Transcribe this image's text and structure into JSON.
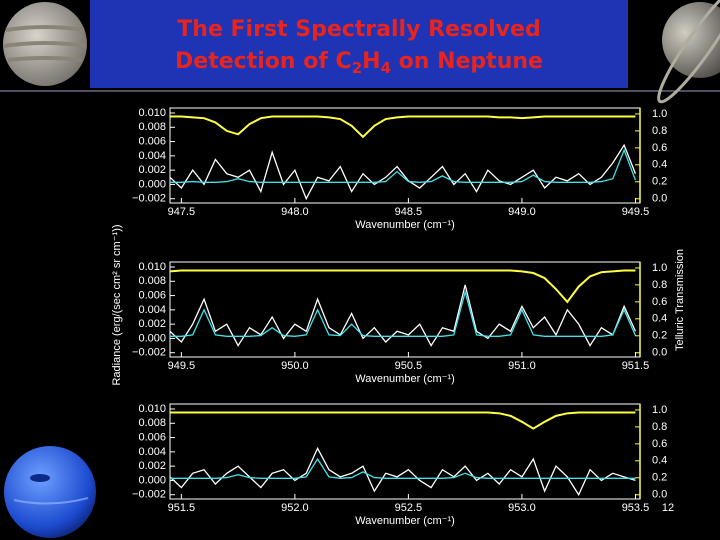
{
  "title": {
    "line1": "The First Spectrally Resolved",
    "line2": [
      "Detection of C",
      "2",
      "H",
      "4",
      " on Neptune"
    ]
  },
  "slide_number": "12",
  "figure": {
    "ylabel": "Radiance (erg/(sec cm² sr cm⁻¹))",
    "y2label": "Telluric Transmission"
  },
  "chart_data": [
    {
      "type": "line",
      "xlabel": "Wavenumber (cm⁻¹)",
      "xlim": [
        947.45,
        949.52
      ],
      "xticks": [
        947.5,
        {
          "value": 948,
          "label": "948.0"
        },
        948.5,
        {
          "value": 949,
          "label": "949.0"
        },
        949.5
      ],
      "ylim": [
        -0.0026,
        0.0107
      ],
      "yticks": [
        {
          "value": 0.01,
          "label": "0.010"
        },
        0.008,
        0.006,
        0.004,
        0.002,
        {
          "value": 0,
          "label": "0.000"
        },
        {
          "value": -0.002,
          "label": "−0.002"
        }
      ],
      "y2lim": [
        -0.05,
        1.07
      ],
      "y2ticks": [
        {
          "value": 1,
          "label": "1.0"
        },
        0.8,
        0.6,
        0.4,
        0.2,
        {
          "value": 0,
          "label": "0.0"
        }
      ],
      "x": [
        947.45,
        947.5,
        947.55,
        947.6,
        947.65,
        947.7,
        947.75,
        947.8,
        947.85,
        947.9,
        947.95,
        948.0,
        948.05,
        948.1,
        948.15,
        948.2,
        948.25,
        948.3,
        948.35,
        948.4,
        948.45,
        948.5,
        948.55,
        948.6,
        948.65,
        948.7,
        948.75,
        948.8,
        948.85,
        948.9,
        948.95,
        949.0,
        949.05,
        949.1,
        949.15,
        949.2,
        949.25,
        949.3,
        949.35,
        949.4,
        949.45,
        949.5
      ],
      "series": [
        {
          "color": "#ffffff",
          "values": [
            0.001,
            -0.0005,
            0.002,
            0.0,
            0.0035,
            0.0015,
            0.001,
            0.002,
            -0.001,
            0.0045,
            0.0,
            0.002,
            -0.002,
            0.001,
            0.0005,
            0.0025,
            -0.001,
            0.0015,
            0.0,
            0.001,
            0.0025,
            0.0005,
            -0.0005,
            0.001,
            0.0025,
            0.0,
            0.0015,
            -0.001,
            0.002,
            0.0005,
            0.0,
            0.001,
            0.002,
            -0.0005,
            0.001,
            0.0005,
            0.0015,
            0.0,
            0.001,
            0.003,
            0.0055,
            0.0015
          ]
        },
        {
          "color": "#3fe0e8",
          "values": [
            0.0003,
            0.0003,
            0.0004,
            0.0003,
            0.0003,
            0.0004,
            0.0008,
            0.0004,
            0.0003,
            0.0003,
            0.0003,
            0.0003,
            0.0003,
            0.0003,
            0.0003,
            0.0003,
            0.0003,
            0.0003,
            0.0003,
            0.0004,
            0.0018,
            0.0004,
            0.0003,
            0.0004,
            0.0012,
            0.0004,
            0.0003,
            0.0003,
            0.0003,
            0.0003,
            0.0003,
            0.0004,
            0.0013,
            0.0004,
            0.0003,
            0.0003,
            0.0003,
            0.0003,
            0.0004,
            0.0008,
            0.0048,
            0.0006
          ]
        },
        {
          "color": "#ffff44",
          "axis": "y2",
          "values": [
            0.97,
            0.97,
            0.96,
            0.95,
            0.9,
            0.8,
            0.76,
            0.88,
            0.95,
            0.97,
            0.97,
            0.97,
            0.97,
            0.97,
            0.96,
            0.94,
            0.86,
            0.73,
            0.86,
            0.94,
            0.96,
            0.97,
            0.97,
            0.97,
            0.97,
            0.97,
            0.97,
            0.97,
            0.97,
            0.96,
            0.96,
            0.95,
            0.96,
            0.97,
            0.97,
            0.97,
            0.97,
            0.97,
            0.97,
            0.97,
            0.97,
            0.97
          ]
        }
      ]
    },
    {
      "type": "line",
      "xlabel": "Wavenumber (cm⁻¹)",
      "xlim": [
        949.45,
        951.52
      ],
      "xticks": [
        949.5,
        {
          "value": 950,
          "label": "950.0"
        },
        950.5,
        {
          "value": 951,
          "label": "951.0"
        },
        951.5
      ],
      "ylim": [
        -0.0026,
        0.0107
      ],
      "yticks": [
        {
          "value": 0.01,
          "label": "0.010"
        },
        0.008,
        0.006,
        0.004,
        0.002,
        {
          "value": 0,
          "label": "0.000"
        },
        {
          "value": -0.002,
          "label": "−0.002"
        }
      ],
      "y2lim": [
        -0.05,
        1.07
      ],
      "y2ticks": [
        {
          "value": 1,
          "label": "1.0"
        },
        0.8,
        0.6,
        0.4,
        0.2,
        {
          "value": 0,
          "label": "0.0"
        }
      ],
      "x": [
        949.45,
        949.5,
        949.55,
        949.6,
        949.65,
        949.7,
        949.75,
        949.8,
        949.85,
        949.9,
        949.95,
        950.0,
        950.05,
        950.1,
        950.15,
        950.2,
        950.25,
        950.3,
        950.35,
        950.4,
        950.45,
        950.5,
        950.55,
        950.6,
        950.65,
        950.7,
        950.75,
        950.8,
        950.85,
        950.9,
        950.95,
        951.0,
        951.05,
        951.1,
        951.15,
        951.2,
        951.25,
        951.3,
        951.35,
        951.4,
        951.45,
        951.5
      ],
      "series": [
        {
          "color": "#ffffff",
          "values": [
            0.001,
            -0.0005,
            0.002,
            0.0055,
            0.001,
            0.002,
            -0.001,
            0.0015,
            0.0005,
            0.003,
            0.0,
            0.002,
            0.001,
            0.0055,
            0.0015,
            0.0005,
            0.0035,
            0.0,
            0.0015,
            -0.0005,
            0.001,
            0.0005,
            0.002,
            -0.001,
            0.0015,
            0.001,
            0.0075,
            0.001,
            0.0,
            0.002,
            0.001,
            0.0045,
            0.0015,
            0.003,
            0.0005,
            0.004,
            0.002,
            -0.001,
            0.0015,
            0.0005,
            0.0045,
            0.001
          ]
        },
        {
          "color": "#3fe0e8",
          "values": [
            0.0003,
            0.0003,
            0.0005,
            0.004,
            0.0005,
            0.0003,
            0.0003,
            0.0003,
            0.0004,
            0.0015,
            0.0004,
            0.0003,
            0.0005,
            0.004,
            0.0005,
            0.0004,
            0.002,
            0.0004,
            0.0003,
            0.0003,
            0.0003,
            0.0003,
            0.0003,
            0.0003,
            0.0003,
            0.0005,
            0.0065,
            0.0005,
            0.0003,
            0.0003,
            0.0005,
            0.004,
            0.0005,
            0.0003,
            0.0003,
            0.0003,
            0.0003,
            0.0003,
            0.0003,
            0.0005,
            0.004,
            0.0004
          ]
        },
        {
          "color": "#ffff44",
          "axis": "y2",
          "values": [
            0.96,
            0.97,
            0.97,
            0.97,
            0.97,
            0.97,
            0.97,
            0.97,
            0.97,
            0.97,
            0.97,
            0.97,
            0.97,
            0.97,
            0.97,
            0.97,
            0.97,
            0.97,
            0.97,
            0.97,
            0.97,
            0.97,
            0.97,
            0.97,
            0.97,
            0.97,
            0.97,
            0.97,
            0.97,
            0.97,
            0.97,
            0.96,
            0.94,
            0.88,
            0.75,
            0.6,
            0.78,
            0.9,
            0.95,
            0.96,
            0.97,
            0.97
          ]
        }
      ]
    },
    {
      "type": "line",
      "xlabel": "Wavenumber (cm⁻¹)",
      "xlim": [
        951.45,
        953.52
      ],
      "xticks": [
        951.5,
        {
          "value": 952,
          "label": "952.0"
        },
        952.5,
        {
          "value": 953,
          "label": "953.0"
        },
        953.5
      ],
      "ylim": [
        -0.0026,
        0.0107
      ],
      "yticks": [
        {
          "value": 0.01,
          "label": "0.010"
        },
        0.008,
        0.006,
        0.004,
        0.002,
        {
          "value": 0,
          "label": "0.000"
        },
        {
          "value": -0.002,
          "label": "−0.002"
        }
      ],
      "y2lim": [
        -0.05,
        1.07
      ],
      "y2ticks": [
        {
          "value": 1,
          "label": "1.0"
        },
        0.8,
        0.6,
        0.4,
        0.2,
        {
          "value": 0,
          "label": "0.0"
        }
      ],
      "x": [
        951.45,
        951.5,
        951.55,
        951.6,
        951.65,
        951.7,
        951.75,
        951.8,
        951.85,
        951.9,
        951.95,
        952.0,
        952.05,
        952.1,
        952.15,
        952.2,
        952.25,
        952.3,
        952.35,
        952.4,
        952.45,
        952.5,
        952.55,
        952.6,
        952.65,
        952.7,
        952.75,
        952.8,
        952.85,
        952.9,
        952.95,
        953.0,
        953.05,
        953.1,
        953.15,
        953.2,
        953.25,
        953.3,
        953.35,
        953.4,
        953.45,
        953.5
      ],
      "series": [
        {
          "color": "#ffffff",
          "values": [
            0.0005,
            -0.001,
            0.001,
            0.0015,
            -0.0005,
            0.001,
            0.002,
            0.0005,
            -0.001,
            0.001,
            0.0015,
            0.0,
            0.001,
            0.0045,
            0.0015,
            0.0005,
            0.001,
            0.002,
            -0.0015,
            0.001,
            0.0005,
            0.0015,
            0.0,
            -0.001,
            0.0015,
            0.0005,
            0.002,
            0.0,
            0.001,
            -0.0005,
            0.0015,
            0.0005,
            0.003,
            -0.0015,
            0.002,
            0.0005,
            -0.002,
            0.0015,
            0.0,
            0.001,
            0.0005,
            0.0
          ]
        },
        {
          "color": "#3fe0e8",
          "values": [
            0.0003,
            0.0003,
            0.0003,
            0.0003,
            0.0003,
            0.0004,
            0.0008,
            0.0004,
            0.0003,
            0.0003,
            0.0003,
            0.0003,
            0.0005,
            0.003,
            0.0005,
            0.0003,
            0.0004,
            0.0012,
            0.0004,
            0.0003,
            0.0003,
            0.0003,
            0.0003,
            0.0003,
            0.0003,
            0.0004,
            0.001,
            0.0004,
            0.0003,
            0.0003,
            0.0003,
            0.0003,
            0.0003,
            0.0003,
            0.0003,
            0.0003,
            0.0003,
            0.0003,
            0.0003,
            0.0003,
            0.0003,
            0.0003
          ]
        },
        {
          "color": "#ffff44",
          "axis": "y2",
          "values": [
            0.97,
            0.97,
            0.97,
            0.97,
            0.97,
            0.97,
            0.97,
            0.97,
            0.97,
            0.97,
            0.97,
            0.97,
            0.97,
            0.97,
            0.97,
            0.97,
            0.97,
            0.97,
            0.97,
            0.97,
            0.97,
            0.97,
            0.97,
            0.97,
            0.97,
            0.97,
            0.97,
            0.97,
            0.97,
            0.96,
            0.93,
            0.86,
            0.78,
            0.86,
            0.93,
            0.96,
            0.97,
            0.97,
            0.97,
            0.97,
            0.97,
            0.97
          ]
        }
      ]
    }
  ]
}
